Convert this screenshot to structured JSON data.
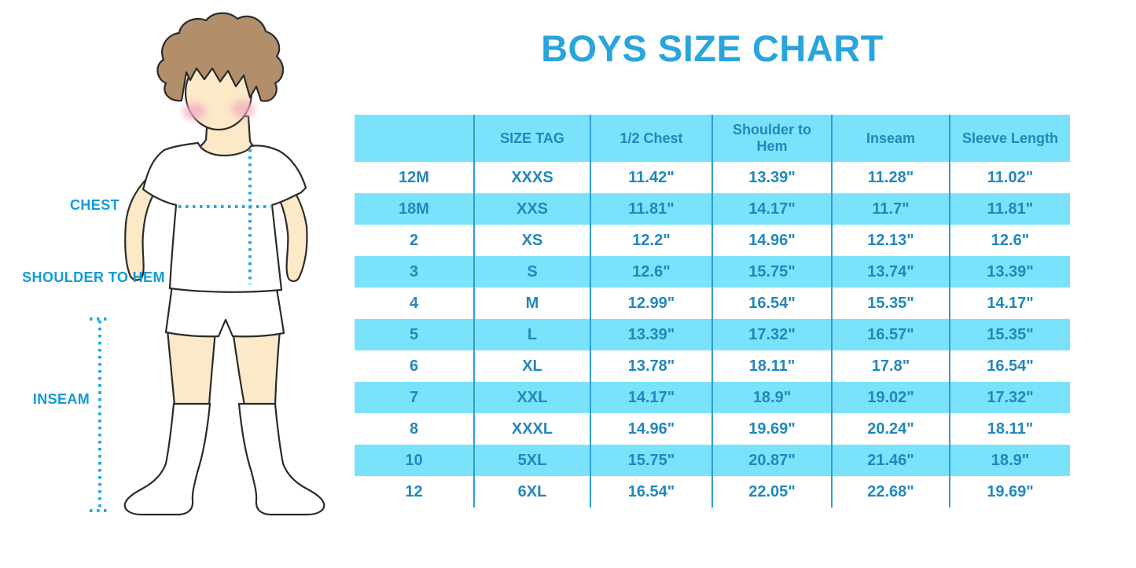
{
  "title": "BOYS SIZE CHART",
  "figure": {
    "description": "cartoon boy in white t-shirt, shorts and knee socks with measurement guides",
    "labels": [
      {
        "id": "chest",
        "text": "CHEST"
      },
      {
        "id": "shoulder-to-hem",
        "text": "SHOULDER TO HEM"
      },
      {
        "id": "inseam",
        "text": "INSEAM"
      }
    ]
  },
  "colors": {
    "title_blue": "#29A4DC",
    "label_blue": "#109BD8",
    "table_text_blue": "#2287BD",
    "table_stripe_cyan": "#7BE2FB",
    "table_divider_blue": "#2D9ED6",
    "dotted_line_blue": "#2AA8E0",
    "skin": "#FBE9C8",
    "hair_brown": "#B28F6A",
    "cheek_pink": "#F2ACBE",
    "background": "#FFFFFF"
  },
  "chart_data": {
    "type": "table",
    "title": "BOYS SIZE CHART",
    "columns": [
      "",
      "SIZE TAG",
      "1/2 Chest",
      "Shoulder to Hem",
      "Inseam",
      "Sleeve Length"
    ],
    "rows": [
      [
        "12M",
        "XXXS",
        "11.42\"",
        "13.39\"",
        "11.28\"",
        "11.02\""
      ],
      [
        "18M",
        "XXS",
        "11.81\"",
        "14.17\"",
        "11.7\"",
        "11.81\""
      ],
      [
        "2",
        "XS",
        "12.2\"",
        "14.96\"",
        "12.13\"",
        "12.6\""
      ],
      [
        "3",
        "S",
        "12.6\"",
        "15.75\"",
        "13.74\"",
        "13.39\""
      ],
      [
        "4",
        "M",
        "12.99\"",
        "16.54\"",
        "15.35\"",
        "14.17\""
      ],
      [
        "5",
        "L",
        "13.39\"",
        "17.32\"",
        "16.57\"",
        "15.35\""
      ],
      [
        "6",
        "XL",
        "13.78\"",
        "18.11\"",
        "17.8\"",
        "16.54\""
      ],
      [
        "7",
        "XXL",
        "14.17\"",
        "18.9\"",
        "19.02\"",
        "17.32\""
      ],
      [
        "8",
        "XXXL",
        "14.96\"",
        "19.69\"",
        "20.24\"",
        "18.11\""
      ],
      [
        "10",
        "5XL",
        "15.75\"",
        "20.87\"",
        "21.46\"",
        "18.9\""
      ],
      [
        "12",
        "6XL",
        "16.54\"",
        "22.05\"",
        "22.68\"",
        "19.69\""
      ]
    ],
    "layout": {
      "header_background": "cyan",
      "body_stripes": "white/cyan alternating starting white",
      "column_dividers": true,
      "outer_border": false
    }
  }
}
